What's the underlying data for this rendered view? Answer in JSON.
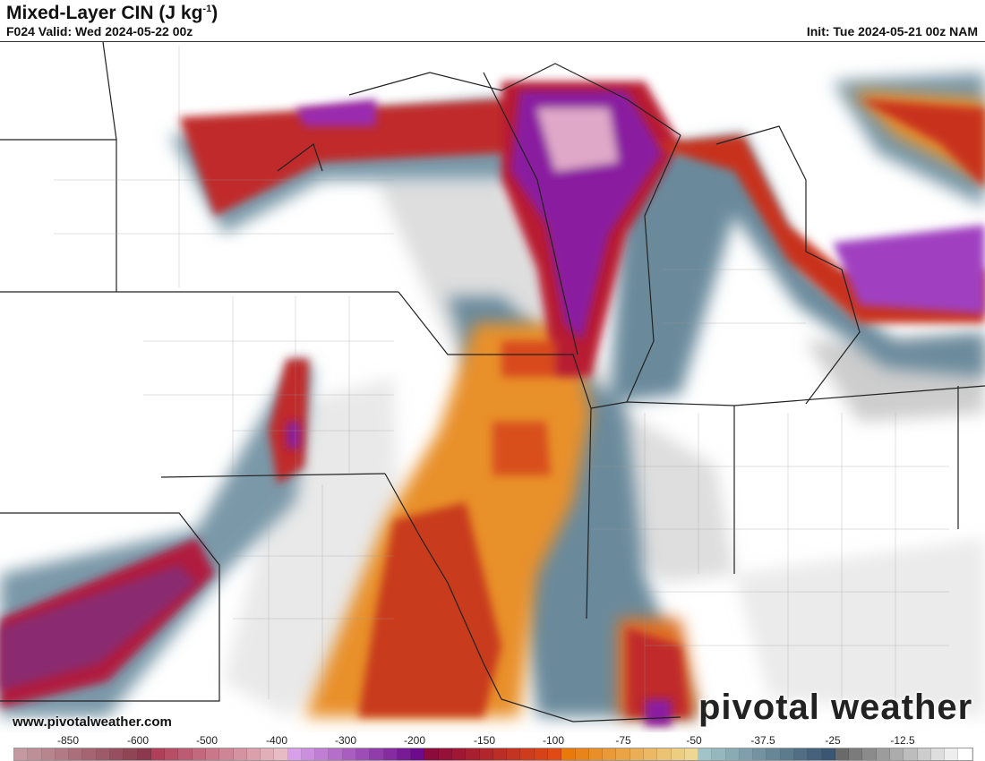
{
  "header": {
    "title": "Mixed-Layer CIN (J kg",
    "title_sup": "-1",
    "title_close": ")",
    "valid": "F024 Valid: Wed 2024-05-22 00z",
    "init": "Init: Tue 2024-05-21 00z NAM"
  },
  "footer": {
    "url": "www.pivotalweather.com",
    "logo": "pivotal weather"
  },
  "colorbar": {
    "ticks": [
      "-850",
      "-600",
      "-500",
      "-400",
      "-300",
      "-200",
      "-150",
      "-100",
      "-75",
      "-50",
      "-37.5",
      "-25",
      "-12.5"
    ],
    "groups": [
      {
        "from": "#c49aa0",
        "to": "#8a3a4c"
      },
      {
        "from": "#b0405a",
        "to": "#e8bcc4"
      },
      {
        "from": "#d8a0e8",
        "to": "#6e0a8c"
      },
      {
        "from": "#8c0a3c",
        "to": "#e04a14"
      },
      {
        "from": "#e87a0a",
        "to": "#ecd890"
      },
      {
        "from": "#a0c4c8",
        "to": "#3a5670"
      },
      {
        "from": "#6a6a6a",
        "to": "#ffffff"
      }
    ]
  }
}
